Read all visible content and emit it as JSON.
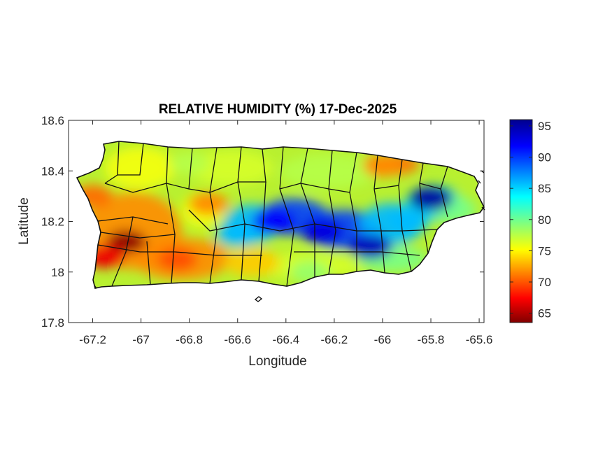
{
  "chart_data": {
    "type": "heatmap",
    "title": "RELATIVE HUMIDITY (%) 17-Dec-2025",
    "xlabel": "Longitude",
    "ylabel": "Latitude",
    "xlim": [
      -67.3,
      -65.58
    ],
    "ylim": [
      17.8,
      18.6
    ],
    "x_ticks": [
      -67.2,
      -67,
      -66.8,
      -66.6,
      -66.4,
      -66.2,
      -66,
      -65.8,
      -65.6
    ],
    "x_tick_labels": [
      "-67.2",
      "-67",
      "-66.8",
      "-66.6",
      "-66.4",
      "-66.2",
      "-66",
      "-65.8",
      "-65.6"
    ],
    "y_ticks": [
      17.8,
      18,
      18.2,
      18.4,
      18.6
    ],
    "y_tick_labels": [
      "17.8",
      "18",
      "18.2",
      "18.4",
      "18.6"
    ],
    "colorbar": {
      "range": [
        63.5,
        96
      ],
      "ticks": [
        65,
        70,
        75,
        80,
        85,
        90,
        95
      ],
      "tick_labels": [
        "65",
        "70",
        "75",
        "80",
        "85",
        "90",
        "95"
      ],
      "colormap": "jet"
    },
    "grid": false,
    "hotspots": [
      {
        "lon": -67.06,
        "lat": 18.12,
        "value": 64
      },
      {
        "lon": -67.15,
        "lat": 18.06,
        "value": 67
      },
      {
        "lon": -66.85,
        "lat": 18.05,
        "value": 70
      },
      {
        "lon": -67.2,
        "lat": 18.3,
        "value": 71
      },
      {
        "lon": -66.72,
        "lat": 18.27,
        "value": 72
      },
      {
        "lon": -66.0,
        "lat": 18.42,
        "value": 72
      },
      {
        "lon": -65.8,
        "lat": 18.29,
        "value": 95
      },
      {
        "lon": -66.45,
        "lat": 18.2,
        "value": 92
      },
      {
        "lon": -66.25,
        "lat": 18.16,
        "value": 93
      },
      {
        "lon": -66.05,
        "lat": 18.1,
        "value": 94
      },
      {
        "lon": -66.6,
        "lat": 18.15,
        "value": 86
      },
      {
        "lon": -65.9,
        "lat": 18.2,
        "value": 86
      },
      {
        "lon": -66.3,
        "lat": 18.0,
        "value": 79
      },
      {
        "lon": -66.8,
        "lat": 18.43,
        "value": 78
      }
    ]
  }
}
